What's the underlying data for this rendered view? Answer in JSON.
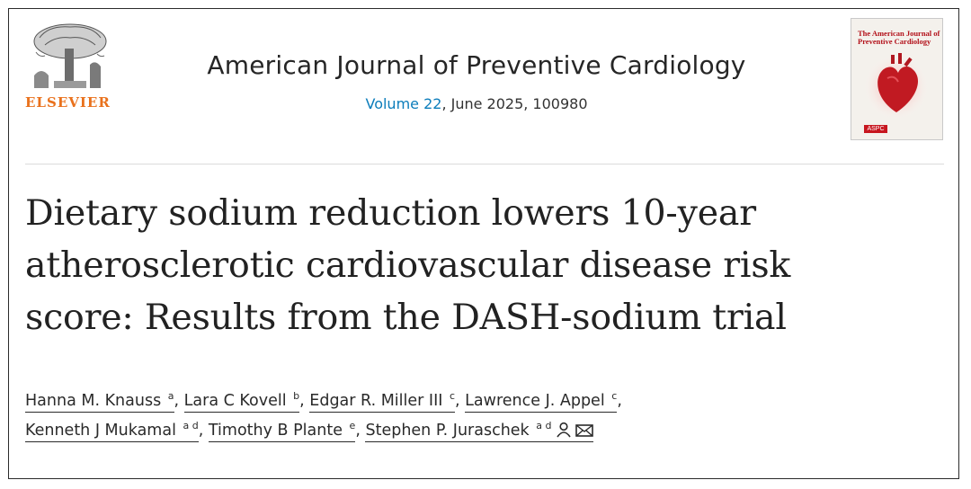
{
  "publisher": {
    "name": "ELSEVIER"
  },
  "journal": {
    "title": "American Journal of Preventive Cardiology",
    "volume_link": "Volume 22",
    "issue_rest": ", June 2025, 100980"
  },
  "cover": {
    "title": "The American Journal of Preventive Cardiology",
    "badge": "ASPC"
  },
  "article": {
    "title_lines": [
      "Dietary sodium reduction lowers 10-year",
      "atherosclerotic cardiovascular disease risk",
      "score: Results from the DASH-sodium trial"
    ]
  },
  "authors": [
    {
      "name": "Hanna M. Knauss",
      "aff": "a"
    },
    {
      "name": "Lara C Kovell",
      "aff": "b"
    },
    {
      "name": "Edgar R. Miller III",
      "aff": "c"
    },
    {
      "name": "Lawrence J. Appel",
      "aff": "c"
    },
    {
      "name": "Kenneth J Mukamal",
      "aff": "a d"
    },
    {
      "name": "Timothy B Plante",
      "aff": "e"
    },
    {
      "name": "Stephen P. Juraschek",
      "aff": "a d"
    }
  ],
  "colors": {
    "publisher": "#e9711c",
    "link": "#0c7dbb",
    "cover_accent": "#c7161f"
  },
  "icons": [
    "person-icon",
    "envelope-icon"
  ]
}
